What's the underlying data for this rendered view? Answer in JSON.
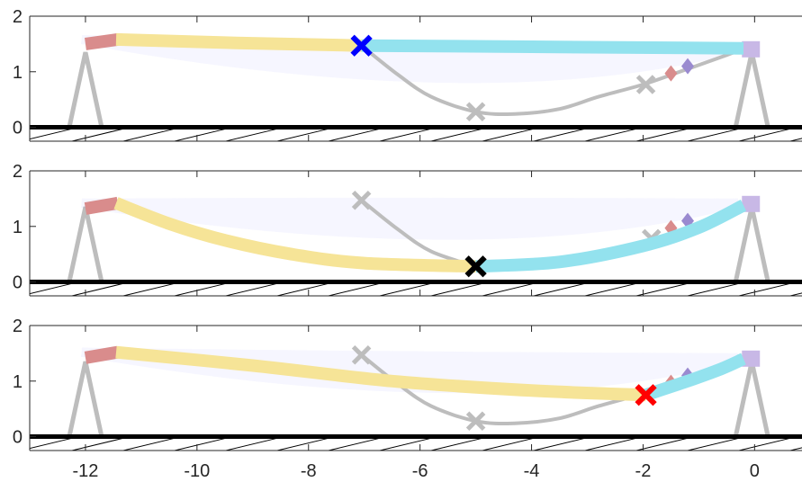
{
  "colors": {
    "axis": "#262626",
    "ground": "#000000",
    "hatch": "#000000",
    "support": "#bdbdbd",
    "trajectory": "#bdbdbd",
    "fan": "#8a8aff",
    "segment_left": "#f6e497",
    "segment_right": "#93e2ee",
    "link_left": "#d98c8c",
    "link_right": "#c8b8e6",
    "diamond_red": "#d98c8c",
    "diamond_purple": "#9a8ad0",
    "gray_marker": "#bdbdbd",
    "marker_blue": "#0000ff",
    "marker_black": "#000000",
    "marker_red": "#ff0000"
  },
  "chart_data": [
    {
      "type": "line",
      "panel": 1,
      "xlim": [
        -13.0,
        0.85
      ],
      "ylim": [
        -0.25,
        2.0
      ],
      "yticks": [
        0,
        1,
        2
      ],
      "grid": false,
      "ground_y": 0,
      "supports_x": [
        -12.0,
        -0.05
      ],
      "left_link": [
        [
          -12.0,
          1.5
        ],
        [
          -11.42,
          1.58
        ]
      ],
      "right_link_x": -0.05,
      "ghost_path": [
        [
          -7.05,
          1.47
        ],
        [
          -6.4,
          0.95
        ],
        [
          -5.8,
          0.55
        ],
        [
          -5.0,
          0.28
        ],
        [
          -4.3,
          0.24
        ],
        [
          -3.5,
          0.33
        ],
        [
          -2.8,
          0.55
        ],
        [
          -2.0,
          0.77
        ],
        [
          -1.2,
          1.05
        ],
        [
          -0.5,
          1.3
        ],
        [
          -0.1,
          1.45
        ]
      ],
      "gray_markers": [
        [
          -5.0,
          0.28
        ],
        [
          -1.95,
          0.77
        ]
      ],
      "diamonds": [
        {
          "x": -1.5,
          "y": 0.97,
          "color": "red"
        },
        {
          "x": -1.2,
          "y": 1.1,
          "color": "purple"
        }
      ],
      "segment_left": [
        [
          -11.45,
          1.58
        ],
        [
          -9.3,
          1.52
        ],
        [
          -7.05,
          1.47
        ]
      ],
      "segment_right": [
        [
          -7.05,
          1.47
        ],
        [
          -4.0,
          1.45
        ],
        [
          -0.2,
          1.42
        ]
      ],
      "active_marker": {
        "x": -7.05,
        "y": 1.47,
        "color": "blue"
      }
    },
    {
      "type": "line",
      "panel": 2,
      "xlim": [
        -13.0,
        0.85
      ],
      "ylim": [
        -0.25,
        2.0
      ],
      "yticks": [
        0,
        1,
        2
      ],
      "grid": false,
      "ground_y": 0,
      "supports_x": [
        -12.0,
        -0.05
      ],
      "left_link": [
        [
          -12.0,
          1.32
        ],
        [
          -11.42,
          1.42
        ]
      ],
      "right_link_x": -0.05,
      "ghost_path": [
        [
          -7.05,
          1.47
        ],
        [
          -6.4,
          0.95
        ],
        [
          -5.8,
          0.55
        ],
        [
          -5.0,
          0.28
        ]
      ],
      "gray_markers": [
        [
          -7.05,
          1.47
        ],
        [
          -1.85,
          0.78
        ]
      ],
      "diamonds": [
        {
          "x": -1.5,
          "y": 0.97,
          "color": "red"
        },
        {
          "x": -1.2,
          "y": 1.1,
          "color": "purple"
        }
      ],
      "segment_left": [
        [
          -11.45,
          1.42
        ],
        [
          -10.5,
          1.05
        ],
        [
          -9.5,
          0.75
        ],
        [
          -8.3,
          0.5
        ],
        [
          -7.0,
          0.34
        ],
        [
          -5.0,
          0.28
        ]
      ],
      "segment_right": [
        [
          -5.0,
          0.28
        ],
        [
          -3.5,
          0.36
        ],
        [
          -2.0,
          0.65
        ],
        [
          -1.0,
          0.98
        ],
        [
          -0.2,
          1.38
        ]
      ],
      "active_marker": {
        "x": -5.0,
        "y": 0.28,
        "color": "black"
      }
    },
    {
      "type": "line",
      "panel": 3,
      "xlim": [
        -13.0,
        0.85
      ],
      "ylim": [
        -0.25,
        2.0
      ],
      "yticks": [
        0,
        1,
        2
      ],
      "grid": false,
      "ground_y": 0,
      "supports_x": [
        -12.0,
        -0.05
      ],
      "left_link": [
        [
          -12.0,
          1.42
        ],
        [
          -11.42,
          1.52
        ]
      ],
      "right_link_x": -0.05,
      "ghost_path": [
        [
          -7.05,
          1.47
        ],
        [
          -6.4,
          0.95
        ],
        [
          -5.8,
          0.55
        ],
        [
          -5.0,
          0.28
        ],
        [
          -4.3,
          0.24
        ],
        [
          -3.5,
          0.33
        ],
        [
          -2.8,
          0.55
        ],
        [
          -2.0,
          0.77
        ]
      ],
      "gray_markers": [
        [
          -7.05,
          1.47
        ],
        [
          -5.0,
          0.28
        ]
      ],
      "diamonds": [
        {
          "x": -1.5,
          "y": 0.97,
          "color": "red"
        },
        {
          "x": -1.2,
          "y": 1.1,
          "color": "purple"
        }
      ],
      "segment_left": [
        [
          -11.45,
          1.52
        ],
        [
          -9.0,
          1.28
        ],
        [
          -6.5,
          1.0
        ],
        [
          -4.0,
          0.83
        ],
        [
          -1.95,
          0.75
        ]
      ],
      "segment_right": [
        [
          -1.95,
          0.75
        ],
        [
          -1.2,
          1.0
        ],
        [
          -0.6,
          1.22
        ],
        [
          -0.2,
          1.4
        ]
      ],
      "active_marker": {
        "x": -1.95,
        "y": 0.75,
        "color": "red"
      }
    }
  ],
  "xaxis": {
    "ticks": [
      -12,
      -10,
      -8,
      -6,
      -4,
      -2,
      0
    ],
    "tick_labels": [
      "-12",
      "-10",
      "-8",
      "-6",
      "-4",
      "-2",
      "0"
    ]
  },
  "yaxis": {
    "tick_labels": [
      "0",
      "1",
      "2"
    ]
  }
}
